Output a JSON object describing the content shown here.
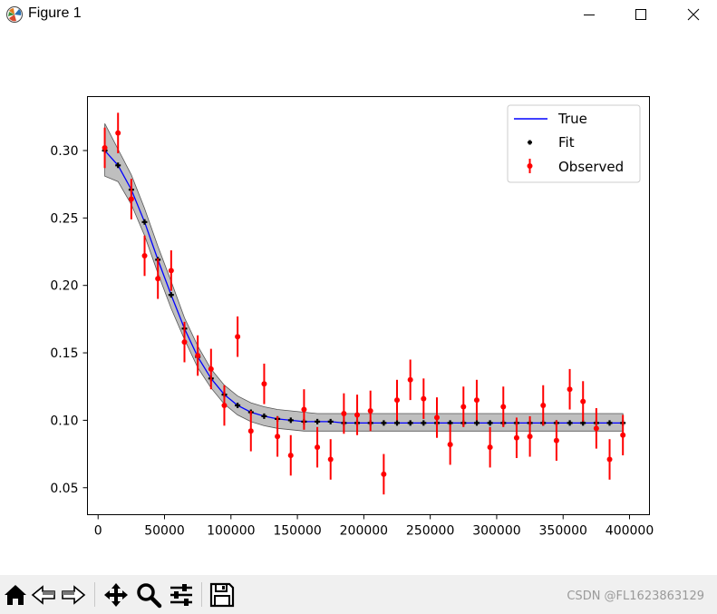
{
  "window": {
    "title": "Figure 1",
    "minimize_icon": "minimize-icon",
    "maximize_icon": "maximize-icon",
    "close_icon": "close-icon"
  },
  "toolbar": {
    "tools": [
      "home-icon",
      "back-icon",
      "forward-icon",
      "pan-icon",
      "zoom-icon",
      "configure-subplots-icon",
      "save-icon"
    ],
    "watermark": "CSDN @FL1623863129"
  },
  "chart_data": {
    "type": "scatter",
    "xlim": [
      -8000,
      415000
    ],
    "ylim": [
      0.03,
      0.34
    ],
    "x_ticks": [
      0,
      50000,
      100000,
      150000,
      200000,
      250000,
      300000,
      350000,
      400000
    ],
    "y_ticks": [
      0.05,
      0.1,
      0.15,
      0.2,
      0.25,
      0.3
    ],
    "x_tick_labels": [
      "0",
      "50000",
      "100000",
      "150000",
      "200000",
      "250000",
      "300000",
      "350000",
      "400000"
    ],
    "y_tick_labels": [
      "0.05",
      "0.10",
      "0.15",
      "0.20",
      "0.25",
      "0.30"
    ],
    "legend": {
      "position": "upper right",
      "entries": [
        "True",
        "Fit",
        "Observed"
      ]
    },
    "colors": {
      "true": "#0000ff",
      "fit": "#000000",
      "observed": "#ff0000",
      "band": "#a9a9a9"
    },
    "x": [
      5000,
      15000,
      25000,
      35000,
      45000,
      55000,
      65000,
      75000,
      85000,
      95000,
      105000,
      115000,
      125000,
      135000,
      145000,
      155000,
      165000,
      175000,
      185000,
      195000,
      205000,
      215000,
      225000,
      235000,
      245000,
      255000,
      265000,
      275000,
      285000,
      295000,
      305000,
      315000,
      325000,
      335000,
      345000,
      355000,
      365000,
      375000,
      385000,
      395000
    ],
    "true_values": [
      0.3,
      0.289,
      0.271,
      0.247,
      0.219,
      0.193,
      0.168,
      0.147,
      0.131,
      0.119,
      0.111,
      0.106,
      0.103,
      0.101,
      0.1,
      0.099,
      0.099,
      0.099,
      0.098,
      0.098,
      0.098,
      0.098,
      0.098,
      0.098,
      0.098,
      0.098,
      0.098,
      0.098,
      0.098,
      0.098,
      0.098,
      0.098,
      0.098,
      0.098,
      0.098,
      0.098,
      0.098,
      0.098,
      0.098,
      0.098
    ],
    "fit_values": [
      0.3,
      0.289,
      0.271,
      0.247,
      0.219,
      0.193,
      0.168,
      0.147,
      0.131,
      0.119,
      0.111,
      0.106,
      0.103,
      0.101,
      0.1,
      0.099,
      0.099,
      0.099,
      0.098,
      0.098,
      0.098,
      0.098,
      0.098,
      0.098,
      0.098,
      0.098,
      0.098,
      0.098,
      0.098,
      0.098,
      0.098,
      0.098,
      0.098,
      0.098,
      0.098,
      0.098,
      0.098,
      0.098,
      0.098,
      0.098
    ],
    "band_lower": [
      0.281,
      0.277,
      0.26,
      0.237,
      0.209,
      0.183,
      0.16,
      0.139,
      0.124,
      0.112,
      0.104,
      0.099,
      0.096,
      0.094,
      0.093,
      0.092,
      0.092,
      0.092,
      0.092,
      0.092,
      0.092,
      0.092,
      0.092,
      0.092,
      0.092,
      0.092,
      0.092,
      0.092,
      0.092,
      0.092,
      0.092,
      0.092,
      0.092,
      0.092,
      0.092,
      0.092,
      0.092,
      0.092,
      0.092,
      0.092
    ],
    "band_upper": [
      0.32,
      0.301,
      0.282,
      0.257,
      0.229,
      0.203,
      0.176,
      0.155,
      0.138,
      0.126,
      0.118,
      0.113,
      0.11,
      0.108,
      0.107,
      0.106,
      0.105,
      0.105,
      0.105,
      0.105,
      0.105,
      0.105,
      0.105,
      0.105,
      0.105,
      0.105,
      0.105,
      0.105,
      0.105,
      0.105,
      0.105,
      0.105,
      0.105,
      0.105,
      0.105,
      0.105,
      0.105,
      0.105,
      0.105,
      0.105
    ],
    "observed": [
      0.302,
      0.313,
      0.264,
      0.222,
      0.205,
      0.211,
      0.158,
      0.148,
      0.138,
      0.111,
      0.162,
      0.092,
      0.127,
      0.088,
      0.074,
      0.108,
      0.08,
      0.071,
      0.105,
      0.104,
      0.107,
      0.06,
      0.115,
      0.13,
      0.116,
      0.102,
      0.082,
      0.11,
      0.115,
      0.08,
      0.11,
      0.087,
      0.088,
      0.111,
      0.085,
      0.123,
      0.114,
      0.094,
      0.071,
      0.089
    ],
    "observed_error": 0.015
  }
}
